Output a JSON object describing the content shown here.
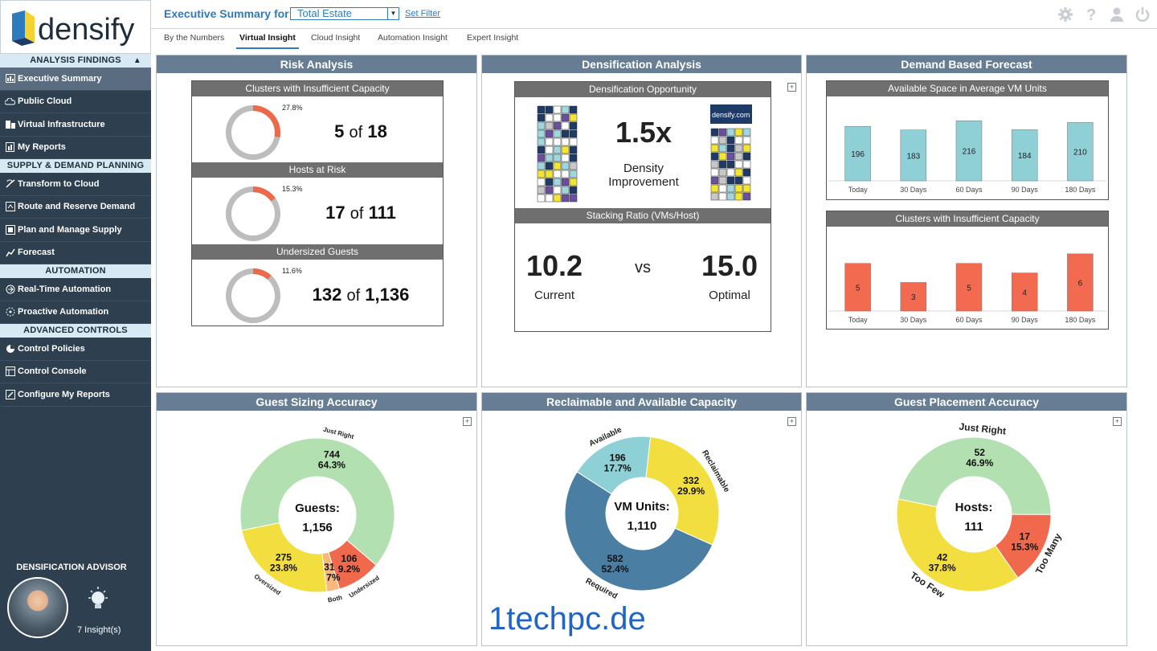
{
  "app": {
    "brand": "densify"
  },
  "topbar": {
    "label": "Executive Summary for",
    "estate": "Total Estate",
    "set_filter": "Set Filter"
  },
  "tabs": [
    {
      "label": "By the Numbers"
    },
    {
      "label": "Virtual Insight",
      "active": true
    },
    {
      "label": "Cloud Insight"
    },
    {
      "label": "Automation Insight"
    },
    {
      "label": "Expert Insight"
    }
  ],
  "sidebar": {
    "sections": [
      {
        "title": "ANALYSIS FINDINGS",
        "items": [
          {
            "label": "Executive Summary",
            "icon": "chart-icon",
            "active": true
          },
          {
            "label": "Public Cloud",
            "icon": "cloud-icon"
          },
          {
            "label": "Virtual Infrastructure",
            "icon": "servers-icon"
          },
          {
            "label": "My Reports",
            "icon": "report-icon"
          }
        ]
      },
      {
        "title": "SUPPLY & DEMAND PLANNING",
        "items": [
          {
            "label": "Transform to Cloud",
            "icon": "transform-icon"
          },
          {
            "label": "Route and Reserve Demand",
            "icon": "route-icon"
          },
          {
            "label": "Plan and Manage Supply",
            "icon": "plan-icon"
          },
          {
            "label": "Forecast",
            "icon": "forecast-icon"
          }
        ]
      },
      {
        "title": "AUTOMATION",
        "items": [
          {
            "label": "Real-Time Automation",
            "icon": "realtime-icon"
          },
          {
            "label": "Proactive Automation",
            "icon": "proactive-icon"
          }
        ]
      },
      {
        "title": "ADVANCED CONTROLS",
        "items": [
          {
            "label": "Control Policies",
            "icon": "policy-icon"
          },
          {
            "label": "Control Console",
            "icon": "console-icon"
          },
          {
            "label": "Configure My Reports",
            "icon": "configure-icon"
          }
        ]
      }
    ],
    "advisor": {
      "title": "DENSIFICATION ADVISOR",
      "insights": "7 Insight(s)"
    }
  },
  "risk": {
    "title": "Risk Analysis",
    "blocks": [
      {
        "title": "Clusters with Insufficient Capacity",
        "pct_label": "27.8%",
        "pct": 0.278,
        "num": "5",
        "of": "of",
        "den": "18"
      },
      {
        "title": "Hosts at Risk",
        "pct_label": "15.3%",
        "pct": 0.153,
        "num": "17",
        "of": "of",
        "den": "111"
      },
      {
        "title": "Undersized Guests",
        "pct_label": "11.6%",
        "pct": 0.116,
        "num": "132",
        "of": "of",
        "den": "1,136"
      }
    ]
  },
  "densification": {
    "title": "Densification Analysis",
    "opportunity_title": "Densification Opportunity",
    "ratio": "1.5x",
    "ratio_label_1": "Density",
    "ratio_label_2": "Improvement",
    "logo_mini": "densify.com",
    "stacking_title": "Stacking Ratio (VMs/Host)",
    "current_value": "10.2",
    "current_label": "Current",
    "vs": "vs",
    "optimal_value": "15.0",
    "optimal_label": "Optimal"
  },
  "forecast": {
    "title": "Demand Based Forecast",
    "charts": [
      {
        "title": "Available Space in Average VM Units",
        "color": "#8fcfd6",
        "categories": [
          "Today",
          "30 Days",
          "60 Days",
          "90 Days",
          "180 Days"
        ],
        "values": [
          196,
          183,
          216,
          184,
          210
        ],
        "ylim": [
          0,
          240
        ]
      },
      {
        "title": "Clusters with Insufficient Capacity",
        "color": "#f26b50",
        "categories": [
          "Today",
          "30 Days",
          "60 Days",
          "90 Days",
          "180 Days"
        ],
        "values": [
          5,
          3,
          5,
          4,
          6
        ],
        "ylim": [
          0,
          7
        ]
      }
    ]
  },
  "guest_sizing": {
    "title": "Guest Sizing Accuracy",
    "center_label": "Guests:",
    "center_value": "1,156",
    "slices": [
      {
        "name": "Just Right",
        "value": 744,
        "pct": "64.3%",
        "color": "#b3e0b0"
      },
      {
        "name": "Undersized",
        "value": 106,
        "pct": "9.2%",
        "color": "#f0694c"
      },
      {
        "name": "Both",
        "value": 31,
        "pct": "2.7%",
        "color": "#f7b97c"
      },
      {
        "name": "Oversized",
        "value": 275,
        "pct": "23.8%",
        "color": "#f2df3f"
      }
    ]
  },
  "reclaimable": {
    "title": "Reclaimable and Available Capacity",
    "center_label": "VM Units:",
    "center_value": "1,110",
    "slices": [
      {
        "name": "Reclaimable",
        "value": 332,
        "pct": "29.9%",
        "color": "#f2df3f"
      },
      {
        "name": "Required",
        "value": 582,
        "pct": "52.4%",
        "color": "#4a7ea3"
      },
      {
        "name": "Available",
        "value": 196,
        "pct": "17.7%",
        "color": "#8dd0d6"
      }
    ]
  },
  "guest_placement": {
    "title": "Guest Placement Accuracy",
    "center_label": "Hosts:",
    "center_value": "111",
    "slices": [
      {
        "name": "Just Right",
        "value": 52,
        "pct": "46.9%",
        "color": "#b3e0b0"
      },
      {
        "name": "Too Many",
        "value": 17,
        "pct": "15.3%",
        "color": "#f0694c"
      },
      {
        "name": "Too Few",
        "value": 42,
        "pct": "37.8%",
        "color": "#f2df3f"
      }
    ]
  },
  "chart_data": [
    {
      "type": "bar",
      "title": "Available Space in Average VM Units",
      "categories": [
        "Today",
        "30 Days",
        "60 Days",
        "90 Days",
        "180 Days"
      ],
      "values": [
        196,
        183,
        216,
        184,
        210
      ]
    },
    {
      "type": "bar",
      "title": "Clusters with Insufficient Capacity",
      "categories": [
        "Today",
        "30 Days",
        "60 Days",
        "90 Days",
        "180 Days"
      ],
      "values": [
        5,
        3,
        5,
        4,
        6
      ]
    },
    {
      "type": "pie",
      "title": "Guest Sizing Accuracy",
      "categories": [
        "Just Right",
        "Undersized",
        "Both",
        "Oversized"
      ],
      "values": [
        744,
        106,
        31,
        275
      ]
    },
    {
      "type": "pie",
      "title": "Reclaimable and Available Capacity",
      "categories": [
        "Reclaimable",
        "Required",
        "Available"
      ],
      "values": [
        332,
        582,
        196
      ]
    },
    {
      "type": "pie",
      "title": "Guest Placement Accuracy",
      "categories": [
        "Just Right",
        "Too Many",
        "Too Few"
      ],
      "values": [
        52,
        17,
        42
      ]
    }
  ],
  "watermark": "1techpc.de"
}
